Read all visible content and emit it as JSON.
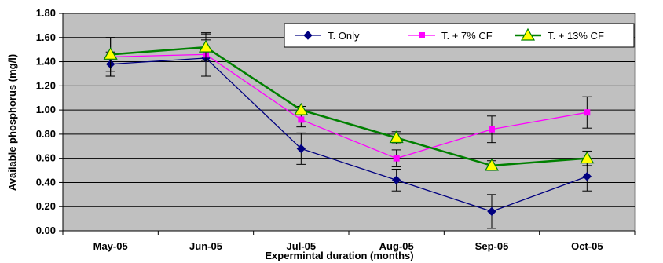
{
  "chart_data": {
    "type": "line",
    "title": "",
    "xlabel": "Expermintal duration (months)",
    "ylabel": "Available phosphorus (mg/l)",
    "categories": [
      "May-05",
      "Jun-05",
      "Jul-05",
      "Aug-05",
      "Sep-05",
      "Oct-05"
    ],
    "yticks": [
      "0.00",
      "0.20",
      "0.40",
      "0.60",
      "0.80",
      "1.00",
      "1.20",
      "1.40",
      "1.60",
      "1.80"
    ],
    "ylim": [
      0,
      1.8
    ],
    "grid": true,
    "legend_position": "top-right",
    "plot_background": "#c0c0c0",
    "series": [
      {
        "name": "T. Only",
        "color": "#000080",
        "marker": "diamond",
        "values": [
          1.38,
          1.43,
          0.68,
          0.42,
          0.16,
          0.45
        ],
        "errors": [
          0.1,
          0.15,
          0.13,
          0.09,
          0.14,
          0.12
        ]
      },
      {
        "name": "T. + 7% CF",
        "color": "#ff00ff",
        "marker": "square",
        "values": [
          1.44,
          1.46,
          0.92,
          0.6,
          0.84,
          0.98
        ],
        "errors": [
          0.16,
          0.18,
          0.06,
          0.07,
          0.11,
          0.13
        ]
      },
      {
        "name": "T. + 13% CF",
        "color": "#008000",
        "marker": "triangle",
        "marker_fill": "#ffff00",
        "values": [
          1.46,
          1.52,
          1.0,
          0.77,
          0.54,
          0.6
        ],
        "errors": [
          0.14,
          0.11,
          0.03,
          0.05,
          0.04,
          0.06
        ]
      }
    ]
  }
}
